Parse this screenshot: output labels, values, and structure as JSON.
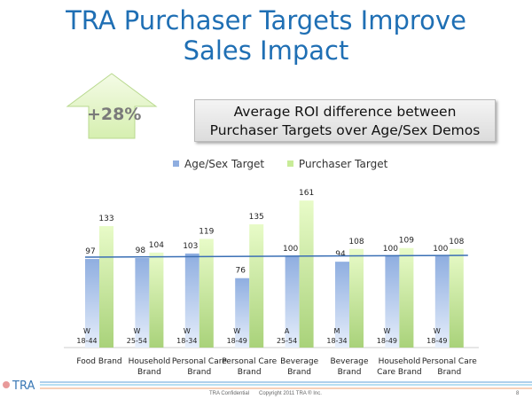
{
  "title_line1": "TRA Purchaser Targets Improve",
  "title_line2": "Sales Impact",
  "callout": {
    "value": "+28%",
    "line1": "Average ROI difference between",
    "line2": "Purchaser Targets over Age/Sex Demos"
  },
  "footer": {
    "logo": "TRA",
    "confidential": "TRA Confidential",
    "copyright": "Copyright 2011 TRA ® Inc.",
    "page": "8"
  },
  "colors": {
    "title": "#1f6fb4",
    "age_sex": "#8faee0",
    "purchaser": "#c8ec98",
    "line": "#3a6fb5"
  },
  "chart_data": {
    "type": "bar",
    "categories": [
      [
        "Food Brand",
        ""
      ],
      [
        "Household",
        "Brand"
      ],
      [
        "Personal Care",
        "Brand"
      ],
      [
        "Personal Care",
        "Brand"
      ],
      [
        "Beverage",
        "Brand"
      ],
      [
        "Beverage",
        "Brand"
      ],
      [
        "Household",
        "Care Brand"
      ],
      [
        "Personal Care",
        "Brand"
      ]
    ],
    "demos": [
      [
        "W",
        "18-44"
      ],
      [
        "W",
        "25-54"
      ],
      [
        "W",
        "18-34"
      ],
      [
        "W",
        "18-49"
      ],
      [
        "A",
        "25-54"
      ],
      [
        "M",
        "18-34"
      ],
      [
        "W",
        "18-49"
      ],
      [
        "W",
        "18-49"
      ]
    ],
    "series": [
      {
        "name": "Age/Sex Target",
        "values": [
          97,
          98,
          103,
          76,
          100,
          94,
          100,
          100
        ]
      },
      {
        "name": "Purchaser Target",
        "values": [
          133,
          104,
          119,
          135,
          161,
          108,
          109,
          108
        ]
      }
    ],
    "reference_line": 100,
    "ylim": [
      0,
      165
    ],
    "legend": "top"
  }
}
